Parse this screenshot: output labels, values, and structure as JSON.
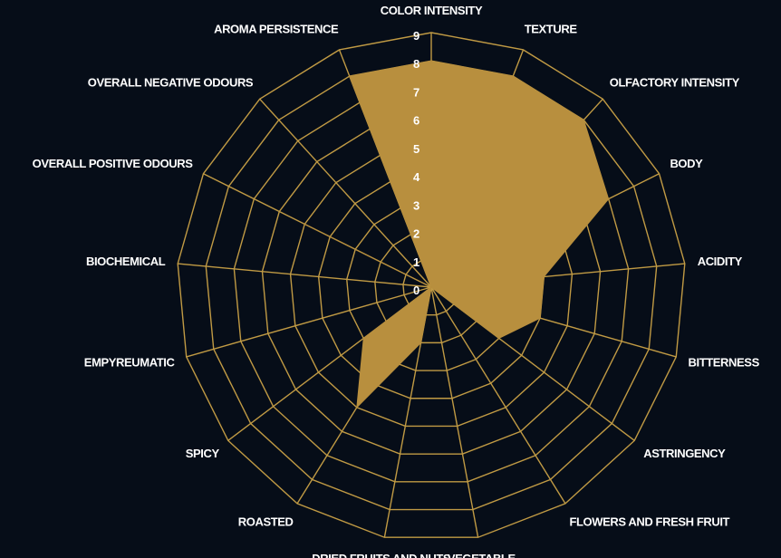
{
  "chart_data": {
    "type": "radar",
    "title": "",
    "categories": [
      "COLOR INTENSITY",
      "TEXTURE",
      "OLFACTORY INTENSITY",
      "BODY",
      "ACIDITY",
      "BITTERNESS",
      "ASTRINGENCY",
      "FLOWERS AND FRESH FRUIT",
      "VEGETABLE",
      "DRIED FRUITS AND NUTS",
      "ROASTED",
      "SPICY",
      "EMPYREUMATIC",
      "BIOCHEMICAL",
      "OVERALL POSITIVE ODOURS",
      "OVERALL NEGATIVE ODOURS",
      "AROMA PERSISTENCE"
    ],
    "series": [
      {
        "values": [
          8,
          8,
          8,
          7,
          4,
          4,
          3,
          0,
          0,
          2,
          5,
          3,
          0,
          0,
          5,
          0,
          8
        ]
      }
    ],
    "ticks": [
      "0",
      "1",
      "2",
      "3",
      "4",
      "5",
      "6",
      "7",
      "8",
      "9"
    ],
    "rlim": [
      0,
      9
    ],
    "grid": true,
    "legend": "none",
    "colors": {
      "background": "#060d18",
      "grid": "#c09a44",
      "fill": "#b88f3e",
      "text": "#ffffff"
    }
  }
}
